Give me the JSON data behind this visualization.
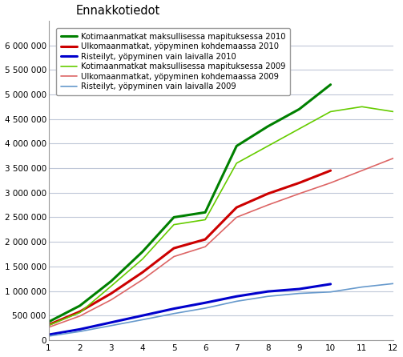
{
  "title": "Ennakkotiedot",
  "months": [
    1,
    2,
    3,
    4,
    5,
    6,
    7,
    8,
    9,
    10,
    11,
    12
  ],
  "series": [
    {
      "label": "Kotimaanmatkat maksullisessa mapituksessa 2010",
      "color": "#008000",
      "linewidth": 2.2,
      "data": [
        370000,
        700000,
        1200000,
        1800000,
        2500000,
        2600000,
        3950000,
        4350000,
        4700000,
        5200000,
        null,
        null
      ]
    },
    {
      "label": "Ulkomaanmatkat, yöpyminen kohdemaassa 2010",
      "color": "#cc0000",
      "linewidth": 2.2,
      "data": [
        310000,
        580000,
        950000,
        1380000,
        1870000,
        2050000,
        2700000,
        2980000,
        3200000,
        3450000,
        null,
        null
      ]
    },
    {
      "label": "Risteilyt, yöpyminen vain laivalla 2010",
      "color": "#0000cc",
      "linewidth": 2.2,
      "data": [
        110000,
        220000,
        360000,
        500000,
        640000,
        760000,
        890000,
        990000,
        1040000,
        1140000,
        null,
        null
      ]
    },
    {
      "label": "Kotimaanmatkat maksullisessa mapituksessa 2009",
      "color": "#66cc00",
      "linewidth": 1.2,
      "data": [
        300000,
        560000,
        1100000,
        1650000,
        2350000,
        2450000,
        3600000,
        3950000,
        4300000,
        4650000,
        4750000,
        4650000
      ]
    },
    {
      "label": "Ulkomaanmatkat, yöpyminen kohdemaassa 2009",
      "color": "#dd6666",
      "linewidth": 1.2,
      "data": [
        260000,
        490000,
        820000,
        1230000,
        1700000,
        1900000,
        2500000,
        2750000,
        2980000,
        3200000,
        3450000,
        3700000
      ]
    },
    {
      "label": "Risteilyt, yöpyminen vain laivalla 2009",
      "color": "#6699cc",
      "linewidth": 1.2,
      "data": [
        80000,
        175000,
        295000,
        415000,
        540000,
        650000,
        790000,
        890000,
        950000,
        980000,
        1080000,
        1150000
      ]
    }
  ],
  "ylim": [
    0,
    6500000
  ],
  "yticks": [
    0,
    500000,
    1000000,
    1500000,
    2000000,
    2500000,
    3000000,
    3500000,
    4000000,
    4500000,
    5000000,
    5500000,
    6000000
  ],
  "xlim": [
    1,
    12
  ],
  "xticks": [
    1,
    2,
    3,
    4,
    5,
    6,
    7,
    8,
    9,
    10,
    11,
    12
  ],
  "grid_color": "#c0c8d8",
  "background_color": "#ffffff",
  "legend_fontsize": 7.2,
  "title_fontsize": 10.5
}
